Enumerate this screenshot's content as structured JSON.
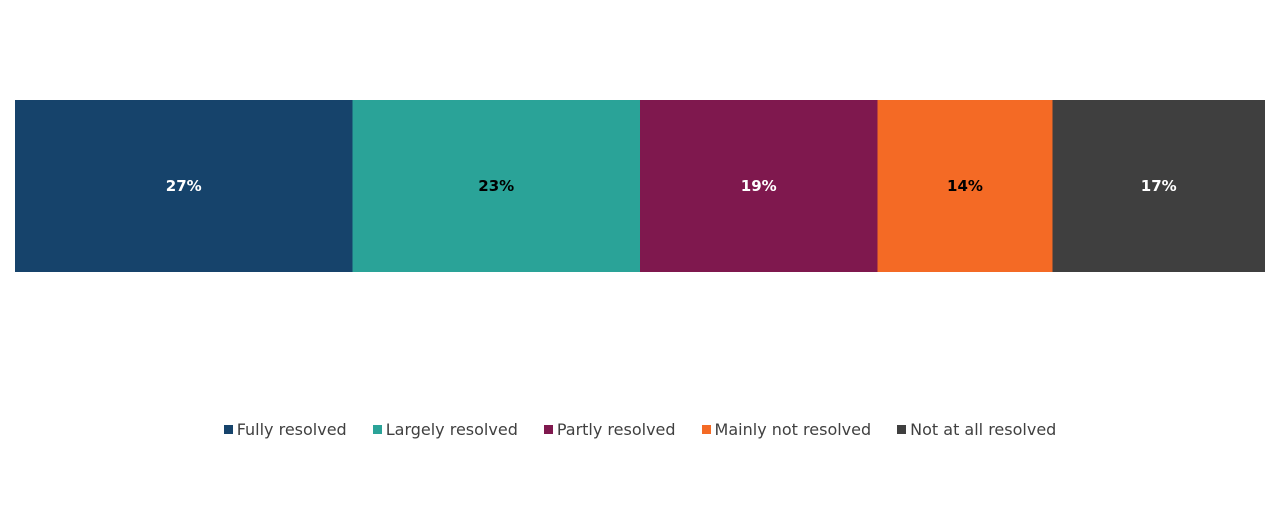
{
  "chart_data": {
    "type": "bar",
    "orientation": "horizontal",
    "stacked": true,
    "normalized": true,
    "categories": [
      ""
    ],
    "title": "",
    "xlabel": "",
    "ylabel": "",
    "grid": false,
    "legend_position": "bottom",
    "xlim": [
      0,
      100
    ],
    "series": [
      {
        "name": "Fully resolved",
        "values": [
          27
        ],
        "label": "27%",
        "color": "#16436b",
        "label_color": "#ffffff"
      },
      {
        "name": "Largely resolved",
        "values": [
          23
        ],
        "label": "23%",
        "color": "#2aa398",
        "label_color": "#000000"
      },
      {
        "name": "Partly resolved",
        "values": [
          19
        ],
        "label": "19%",
        "color": "#7f184e",
        "label_color": "#ffffff"
      },
      {
        "name": "Mainly not resolved",
        "values": [
          14
        ],
        "label": "14%",
        "color": "#f46a25",
        "label_color": "#000000"
      },
      {
        "name": "Not at all resolved",
        "values": [
          17
        ],
        "label": "17%",
        "color": "#3f3f3f",
        "label_color": "#ffffff"
      }
    ]
  }
}
